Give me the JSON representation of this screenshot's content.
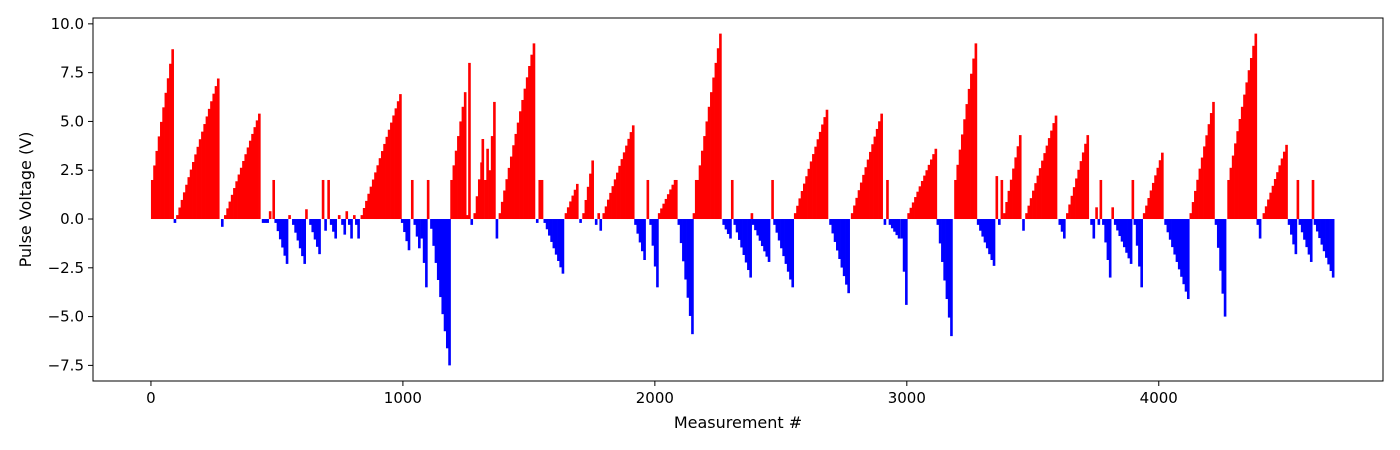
{
  "chart_data": {
    "type": "bar",
    "title": "",
    "xlabel": "Measurement #",
    "ylabel": "Pulse Voltage (V)",
    "xlim": [
      -230,
      4890
    ],
    "ylim": [
      -8.3,
      10.3
    ],
    "x_ticks": [
      0,
      1000,
      2000,
      3000,
      4000
    ],
    "y_ticks": [
      -7.5,
      -5.0,
      -2.5,
      0.0,
      2.5,
      5.0,
      7.5,
      10.0
    ],
    "x_tick_labels": [
      "0",
      "1000",
      "2000",
      "3000",
      "4000"
    ],
    "y_tick_labels": [
      "−7.5",
      "−5.0",
      "−2.5",
      "0.0",
      "2.5",
      "5.0",
      "7.5",
      "10.0"
    ],
    "positive_color": "#ff0000",
    "negative_color": "#0000ff",
    "grid": false,
    "bar_step": 9,
    "ramps": [
      {
        "x_start": 0,
        "x_end": 90,
        "v_start": 2.0,
        "v_end": 8.7
      },
      {
        "x_start": 90,
        "x_end": 98,
        "v_start": -0.2,
        "v_end": -0.2
      },
      {
        "x_start": 100,
        "x_end": 275,
        "v_start": 0.2,
        "v_end": 7.2
      },
      {
        "x_start": 278,
        "x_end": 288,
        "v_start": -0.4,
        "v_end": -0.4
      },
      {
        "x_start": 290,
        "x_end": 435,
        "v_start": 0.2,
        "v_end": 5.4
      },
      {
        "x_start": 440,
        "x_end": 465,
        "v_start": -0.2,
        "v_end": -0.2
      },
      {
        "x_start": 468,
        "x_end": 480,
        "v_start": 0.4,
        "v_end": 0.4
      },
      {
        "x_start": 482,
        "x_end": 490,
        "v_start": 2.0,
        "v_end": 2.0
      },
      {
        "x_start": 490,
        "x_end": 545,
        "v_start": -0.2,
        "v_end": -2.3
      },
      {
        "x_start": 545,
        "x_end": 555,
        "v_start": 0.2,
        "v_end": 0.2
      },
      {
        "x_start": 560,
        "x_end": 610,
        "v_start": -0.3,
        "v_end": -2.3
      },
      {
        "x_start": 612,
        "x_end": 625,
        "v_start": 0.5,
        "v_end": 0.5
      },
      {
        "x_start": 628,
        "x_end": 675,
        "v_start": -0.3,
        "v_end": -1.8
      },
      {
        "x_start": 678,
        "x_end": 685,
        "v_start": 2.0,
        "v_end": 2.0
      },
      {
        "x_start": 688,
        "x_end": 698,
        "v_start": -0.3,
        "v_end": -0.6
      },
      {
        "x_start": 700,
        "x_end": 708,
        "v_start": 2.0,
        "v_end": 2.0
      },
      {
        "x_start": 710,
        "x_end": 740,
        "v_start": -0.3,
        "v_end": -1.0
      },
      {
        "x_start": 742,
        "x_end": 755,
        "v_start": 0.2,
        "v_end": 0.2
      },
      {
        "x_start": 755,
        "x_end": 770,
        "v_start": -0.3,
        "v_end": -0.8
      },
      {
        "x_start": 772,
        "x_end": 780,
        "v_start": 0.4,
        "v_end": 0.4
      },
      {
        "x_start": 782,
        "x_end": 800,
        "v_start": -0.3,
        "v_end": -1.0
      },
      {
        "x_start": 802,
        "x_end": 810,
        "v_start": 0.2,
        "v_end": 0.2
      },
      {
        "x_start": 810,
        "x_end": 830,
        "v_start": -0.3,
        "v_end": -1.0
      },
      {
        "x_start": 832,
        "x_end": 990,
        "v_start": 0.2,
        "v_end": 6.4
      },
      {
        "x_start": 992,
        "x_end": 1030,
        "v_start": -0.2,
        "v_end": -1.6
      },
      {
        "x_start": 1032,
        "x_end": 1040,
        "v_start": 2.0,
        "v_end": 2.0
      },
      {
        "x_start": 1042,
        "x_end": 1070,
        "v_start": -0.3,
        "v_end": -1.5
      },
      {
        "x_start": 1070,
        "x_end": 1095,
        "v_start": -1.0,
        "v_end": -3.5
      },
      {
        "x_start": 1095,
        "x_end": 1105,
        "v_start": 2.0,
        "v_end": 2.0
      },
      {
        "x_start": 1108,
        "x_end": 1185,
        "v_start": -0.5,
        "v_end": -7.5
      },
      {
        "x_start": 1188,
        "x_end": 1250,
        "v_start": 2.0,
        "v_end": 6.5
      },
      {
        "x_start": 1250,
        "x_end": 1265,
        "v_start": 0.2,
        "v_end": 8.0
      },
      {
        "x_start": 1268,
        "x_end": 1278,
        "v_start": -0.3,
        "v_end": -0.3
      },
      {
        "x_start": 1280,
        "x_end": 1312,
        "v_start": 0.3,
        "v_end": 2.9
      },
      {
        "x_start": 1312,
        "x_end": 1322,
        "v_start": 4.1,
        "v_end": 4.1
      },
      {
        "x_start": 1322,
        "x_end": 1340,
        "v_start": 2.0,
        "v_end": 3.6
      },
      {
        "x_start": 1340,
        "x_end": 1365,
        "v_start": 2.5,
        "v_end": 6.0
      },
      {
        "x_start": 1368,
        "x_end": 1378,
        "v_start": -0.3,
        "v_end": -1.0
      },
      {
        "x_start": 1380,
        "x_end": 1525,
        "v_start": 0.3,
        "v_end": 9.0
      },
      {
        "x_start": 1528,
        "x_end": 1535,
        "v_start": -0.2,
        "v_end": -0.2
      },
      {
        "x_start": 1538,
        "x_end": 1545,
        "v_start": 0.3,
        "v_end": 2.0
      },
      {
        "x_start": 1547,
        "x_end": 1555,
        "v_start": 2.0,
        "v_end": 2.0
      },
      {
        "x_start": 1558,
        "x_end": 1640,
        "v_start": -0.2,
        "v_end": -2.8
      },
      {
        "x_start": 1642,
        "x_end": 1700,
        "v_start": 0.3,
        "v_end": 1.8
      },
      {
        "x_start": 1700,
        "x_end": 1710,
        "v_start": -0.2,
        "v_end": -0.2
      },
      {
        "x_start": 1712,
        "x_end": 1760,
        "v_start": 0.3,
        "v_end": 3.0
      },
      {
        "x_start": 1762,
        "x_end": 1770,
        "v_start": -0.3,
        "v_end": -0.3
      },
      {
        "x_start": 1772,
        "x_end": 1778,
        "v_start": 0.3,
        "v_end": 0.3
      },
      {
        "x_start": 1780,
        "x_end": 1790,
        "v_start": -0.3,
        "v_end": -0.6
      },
      {
        "x_start": 1792,
        "x_end": 1915,
        "v_start": 0.3,
        "v_end": 4.8
      },
      {
        "x_start": 1918,
        "x_end": 1965,
        "v_start": -0.3,
        "v_end": -2.1
      },
      {
        "x_start": 1967,
        "x_end": 1975,
        "v_start": 2.0,
        "v_end": 2.0
      },
      {
        "x_start": 1978,
        "x_end": 2010,
        "v_start": -0.3,
        "v_end": -3.5
      },
      {
        "x_start": 2012,
        "x_end": 2080,
        "v_start": 0.3,
        "v_end": 2.0
      },
      {
        "x_start": 2080,
        "x_end": 2088,
        "v_start": 2.0,
        "v_end": 2.0
      },
      {
        "x_start": 2090,
        "x_end": 2150,
        "v_start": -0.3,
        "v_end": -5.9
      },
      {
        "x_start": 2150,
        "x_end": 2165,
        "v_start": 0.3,
        "v_end": 2.0
      },
      {
        "x_start": 2165,
        "x_end": 2265,
        "v_start": 2.0,
        "v_end": 9.5
      },
      {
        "x_start": 2268,
        "x_end": 2300,
        "v_start": -0.3,
        "v_end": -1.0
      },
      {
        "x_start": 2302,
        "x_end": 2310,
        "v_start": 2.0,
        "v_end": 2.0
      },
      {
        "x_start": 2312,
        "x_end": 2380,
        "v_start": -0.3,
        "v_end": -3.0
      },
      {
        "x_start": 2380,
        "x_end": 2385,
        "v_start": 0.3,
        "v_end": 0.3
      },
      {
        "x_start": 2385,
        "x_end": 2460,
        "v_start": -0.3,
        "v_end": -2.2
      },
      {
        "x_start": 2462,
        "x_end": 2470,
        "v_start": 2.0,
        "v_end": 2.0
      },
      {
        "x_start": 2470,
        "x_end": 2550,
        "v_start": -0.3,
        "v_end": -3.5
      },
      {
        "x_start": 2552,
        "x_end": 2690,
        "v_start": 0.3,
        "v_end": 5.6
      },
      {
        "x_start": 2692,
        "x_end": 2775,
        "v_start": -0.3,
        "v_end": -3.8
      },
      {
        "x_start": 2778,
        "x_end": 2905,
        "v_start": 0.3,
        "v_end": 5.4
      },
      {
        "x_start": 2908,
        "x_end": 2918,
        "v_start": -0.3,
        "v_end": -0.3
      },
      {
        "x_start": 2918,
        "x_end": 2925,
        "v_start": 2.0,
        "v_end": 2.0
      },
      {
        "x_start": 2928,
        "x_end": 2975,
        "v_start": -0.3,
        "v_end": -1.0
      },
      {
        "x_start": 2975,
        "x_end": 3000,
        "v_start": -1.0,
        "v_end": -4.4
      },
      {
        "x_start": 3002,
        "x_end": 3115,
        "v_start": 0.3,
        "v_end": 3.6
      },
      {
        "x_start": 3118,
        "x_end": 3185,
        "v_start": -0.3,
        "v_end": -6.0
      },
      {
        "x_start": 3188,
        "x_end": 3275,
        "v_start": 2.0,
        "v_end": 9.0
      },
      {
        "x_start": 3278,
        "x_end": 3350,
        "v_start": -0.3,
        "v_end": -2.4
      },
      {
        "x_start": 3352,
        "x_end": 3360,
        "v_start": 2.2,
        "v_end": 2.2
      },
      {
        "x_start": 3362,
        "x_end": 3372,
        "v_start": -0.3,
        "v_end": -0.3
      },
      {
        "x_start": 3372,
        "x_end": 3380,
        "v_start": 2.0,
        "v_end": 2.0
      },
      {
        "x_start": 3382,
        "x_end": 3455,
        "v_start": 0.3,
        "v_end": 4.3
      },
      {
        "x_start": 3458,
        "x_end": 3468,
        "v_start": -0.3,
        "v_end": -0.6
      },
      {
        "x_start": 3470,
        "x_end": 3600,
        "v_start": 0.3,
        "v_end": 5.3
      },
      {
        "x_start": 3602,
        "x_end": 3630,
        "v_start": -0.3,
        "v_end": -1.0
      },
      {
        "x_start": 3632,
        "x_end": 3725,
        "v_start": 0.3,
        "v_end": 4.3
      },
      {
        "x_start": 3728,
        "x_end": 3748,
        "v_start": -0.3,
        "v_end": -1.0
      },
      {
        "x_start": 3748,
        "x_end": 3755,
        "v_start": 0.6,
        "v_end": 0.6
      },
      {
        "x_start": 3757,
        "x_end": 3765,
        "v_start": -0.3,
        "v_end": -0.3
      },
      {
        "x_start": 3765,
        "x_end": 3772,
        "v_start": 2.0,
        "v_end": 2.0
      },
      {
        "x_start": 3775,
        "x_end": 3810,
        "v_start": -0.3,
        "v_end": -3.0
      },
      {
        "x_start": 3812,
        "x_end": 3820,
        "v_start": 0.6,
        "v_end": 0.6
      },
      {
        "x_start": 3822,
        "x_end": 3890,
        "v_start": -0.3,
        "v_end": -2.3
      },
      {
        "x_start": 3892,
        "x_end": 3898,
        "v_start": 2.0,
        "v_end": 2.0
      },
      {
        "x_start": 3900,
        "x_end": 3935,
        "v_start": -0.3,
        "v_end": -3.5
      },
      {
        "x_start": 3937,
        "x_end": 4020,
        "v_start": 0.3,
        "v_end": 3.4
      },
      {
        "x_start": 4022,
        "x_end": 4120,
        "v_start": -0.3,
        "v_end": -4.1
      },
      {
        "x_start": 4122,
        "x_end": 4220,
        "v_start": 0.3,
        "v_end": 6.0
      },
      {
        "x_start": 4222,
        "x_end": 4270,
        "v_start": -0.3,
        "v_end": -5.0
      },
      {
        "x_start": 4272,
        "x_end": 4385,
        "v_start": 2.0,
        "v_end": 9.5
      },
      {
        "x_start": 4388,
        "x_end": 4410,
        "v_start": -0.3,
        "v_end": -1.0
      },
      {
        "x_start": 4412,
        "x_end": 4510,
        "v_start": 0.3,
        "v_end": 3.8
      },
      {
        "x_start": 4512,
        "x_end": 4545,
        "v_start": -0.3,
        "v_end": -1.8
      },
      {
        "x_start": 4547,
        "x_end": 4553,
        "v_start": 2.0,
        "v_end": 2.0
      },
      {
        "x_start": 4555,
        "x_end": 4605,
        "v_start": -0.3,
        "v_end": -2.2
      },
      {
        "x_start": 4607,
        "x_end": 4613,
        "v_start": 2.0,
        "v_end": 2.0
      },
      {
        "x_start": 4615,
        "x_end": 4695,
        "v_start": -0.3,
        "v_end": -3.0
      }
    ]
  }
}
